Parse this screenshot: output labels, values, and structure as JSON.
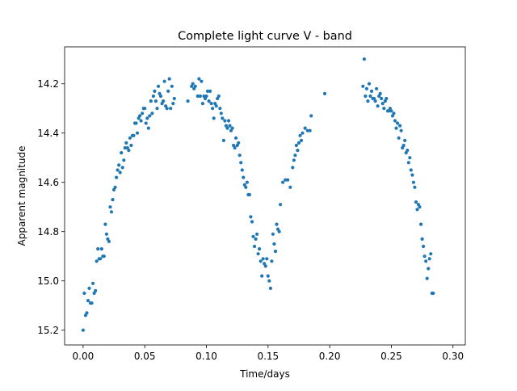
{
  "chart_data": {
    "type": "scatter",
    "title": "Complete light curve V - band",
    "xlabel": "Time/days",
    "ylabel": "Apparent magnitude",
    "xlim": [
      -0.015,
      0.31
    ],
    "ylim": [
      15.26,
      14.05
    ],
    "y_inverted": true,
    "grid": false,
    "x_ticks": [
      {
        "value": 0.0,
        "label": "0.00"
      },
      {
        "value": 0.05,
        "label": "0.05"
      },
      {
        "value": 0.1,
        "label": "0.10"
      },
      {
        "value": 0.15,
        "label": "0.15"
      },
      {
        "value": 0.2,
        "label": "0.20"
      },
      {
        "value": 0.25,
        "label": "0.25"
      },
      {
        "value": 0.3,
        "label": "0.30"
      }
    ],
    "y_ticks": [
      {
        "value": 14.2,
        "label": "14.2"
      },
      {
        "value": 14.4,
        "label": "14.4"
      },
      {
        "value": 14.6,
        "label": "14.6"
      },
      {
        "value": 14.8,
        "label": "14.8"
      },
      {
        "value": 15.0,
        "label": "15.0"
      },
      {
        "value": 15.2,
        "label": "15.2"
      }
    ],
    "series": [
      {
        "color": "#1f77b4",
        "points": [
          [
            0.0,
            15.2
          ],
          [
            0.001,
            15.05
          ],
          [
            0.002,
            15.14
          ],
          [
            0.003,
            15.13
          ],
          [
            0.004,
            15.08
          ],
          [
            0.005,
            15.03
          ],
          [
            0.006,
            15.09
          ],
          [
            0.007,
            15.09
          ],
          [
            0.008,
            15.01
          ],
          [
            0.009,
            15.05
          ],
          [
            0.01,
            15.04
          ],
          [
            0.011,
            14.92
          ],
          [
            0.012,
            14.87
          ],
          [
            0.013,
            14.91
          ],
          [
            0.014,
            14.91
          ],
          [
            0.015,
            14.87
          ],
          [
            0.016,
            14.9
          ],
          [
            0.017,
            14.9
          ],
          [
            0.018,
            14.77
          ],
          [
            0.019,
            14.81
          ],
          [
            0.02,
            14.83
          ],
          [
            0.021,
            14.84
          ],
          [
            0.022,
            14.7
          ],
          [
            0.023,
            14.72
          ],
          [
            0.024,
            14.67
          ],
          [
            0.025,
            14.63
          ],
          [
            0.026,
            14.62
          ],
          [
            0.027,
            14.58
          ],
          [
            0.028,
            14.55
          ],
          [
            0.029,
            14.53
          ],
          [
            0.03,
            14.56
          ],
          [
            0.031,
            14.48
          ],
          [
            0.032,
            14.54
          ],
          [
            0.033,
            14.51
          ],
          [
            0.034,
            14.46
          ],
          [
            0.035,
            14.44
          ],
          [
            0.036,
            14.46
          ],
          [
            0.037,
            14.47
          ],
          [
            0.038,
            14.42
          ],
          [
            0.039,
            14.45
          ],
          [
            0.04,
            14.41
          ],
          [
            0.041,
            14.41
          ],
          [
            0.042,
            14.36
          ],
          [
            0.043,
            14.36
          ],
          [
            0.044,
            14.4
          ],
          [
            0.045,
            14.34
          ],
          [
            0.046,
            14.33
          ],
          [
            0.047,
            14.35
          ],
          [
            0.048,
            14.32
          ],
          [
            0.049,
            14.3
          ],
          [
            0.05,
            14.3
          ],
          [
            0.051,
            14.36
          ],
          [
            0.052,
            14.34
          ],
          [
            0.053,
            14.38
          ],
          [
            0.054,
            14.33
          ],
          [
            0.055,
            14.27
          ],
          [
            0.056,
            14.32
          ],
          [
            0.057,
            14.25
          ],
          [
            0.058,
            14.23
          ],
          [
            0.059,
            14.27
          ],
          [
            0.06,
            14.3
          ],
          [
            0.061,
            14.21
          ],
          [
            0.062,
            14.24
          ],
          [
            0.063,
            14.25
          ],
          [
            0.064,
            14.28
          ],
          [
            0.065,
            14.27
          ],
          [
            0.066,
            14.19
          ],
          [
            0.067,
            14.29
          ],
          [
            0.068,
            14.3
          ],
          [
            0.069,
            14.23
          ],
          [
            0.07,
            14.18
          ],
          [
            0.071,
            14.3
          ],
          [
            0.072,
            14.21
          ],
          [
            0.073,
            14.28
          ],
          [
            0.074,
            14.26
          ],
          [
            0.085,
            14.27
          ],
          [
            0.088,
            14.21
          ],
          [
            0.089,
            14.2
          ],
          [
            0.09,
            14.22
          ],
          [
            0.091,
            14.21
          ],
          [
            0.093,
            14.25
          ],
          [
            0.094,
            14.18
          ],
          [
            0.095,
            14.25
          ],
          [
            0.096,
            14.19
          ],
          [
            0.097,
            14.28
          ],
          [
            0.098,
            14.25
          ],
          [
            0.099,
            14.26
          ],
          [
            0.1,
            14.25
          ],
          [
            0.101,
            14.23
          ],
          [
            0.102,
            14.27
          ],
          [
            0.103,
            14.23
          ],
          [
            0.104,
            14.28
          ],
          [
            0.105,
            14.3
          ],
          [
            0.106,
            14.34
          ],
          [
            0.107,
            14.28
          ],
          [
            0.108,
            14.29
          ],
          [
            0.109,
            14.26
          ],
          [
            0.11,
            14.25
          ],
          [
            0.111,
            14.3
          ],
          [
            0.112,
            14.32
          ],
          [
            0.113,
            14.34
          ],
          [
            0.114,
            14.43
          ],
          [
            0.115,
            14.35
          ],
          [
            0.116,
            14.37
          ],
          [
            0.117,
            14.38
          ],
          [
            0.118,
            14.35
          ],
          [
            0.119,
            14.37
          ],
          [
            0.12,
            14.39
          ],
          [
            0.121,
            14.38
          ],
          [
            0.122,
            14.45
          ],
          [
            0.123,
            14.46
          ],
          [
            0.124,
            14.42
          ],
          [
            0.125,
            14.45
          ],
          [
            0.126,
            14.44
          ],
          [
            0.127,
            14.49
          ],
          [
            0.128,
            14.52
          ],
          [
            0.129,
            14.55
          ],
          [
            0.13,
            14.58
          ],
          [
            0.131,
            14.61
          ],
          [
            0.132,
            14.62
          ],
          [
            0.133,
            14.6
          ],
          [
            0.134,
            14.65
          ],
          [
            0.135,
            14.65
          ],
          [
            0.136,
            14.74
          ],
          [
            0.137,
            14.76
          ],
          [
            0.138,
            14.82
          ],
          [
            0.139,
            14.86
          ],
          [
            0.14,
            14.83
          ],
          [
            0.141,
            14.81
          ],
          [
            0.142,
            14.89
          ],
          [
            0.143,
            14.87
          ],
          [
            0.144,
            14.92
          ],
          [
            0.145,
            14.98
          ],
          [
            0.146,
            14.91
          ],
          [
            0.147,
            14.93
          ],
          [
            0.148,
            14.94
          ],
          [
            0.149,
            14.91
          ],
          [
            0.15,
            14.98
          ],
          [
            0.151,
            15.0
          ],
          [
            0.152,
            15.03
          ],
          [
            0.153,
            14.92
          ],
          [
            0.154,
            14.81
          ],
          [
            0.155,
            14.85
          ],
          [
            0.156,
            14.88
          ],
          [
            0.157,
            14.77
          ],
          [
            0.158,
            14.79
          ],
          [
            0.159,
            14.8
          ],
          [
            0.16,
            14.69
          ],
          [
            0.162,
            14.6
          ],
          [
            0.164,
            14.59
          ],
          [
            0.166,
            14.59
          ],
          [
            0.168,
            14.62
          ],
          [
            0.17,
            14.54
          ],
          [
            0.171,
            14.51
          ],
          [
            0.172,
            14.49
          ],
          [
            0.173,
            14.45
          ],
          [
            0.174,
            14.47
          ],
          [
            0.175,
            14.44
          ],
          [
            0.176,
            14.41
          ],
          [
            0.177,
            14.43
          ],
          [
            0.178,
            14.4
          ],
          [
            0.18,
            14.38
          ],
          [
            0.182,
            14.39
          ],
          [
            0.184,
            14.39
          ],
          [
            0.185,
            14.33
          ],
          [
            0.196,
            14.24
          ],
          [
            0.227,
            14.21
          ],
          [
            0.228,
            14.1
          ],
          [
            0.229,
            14.25
          ],
          [
            0.23,
            14.22
          ],
          [
            0.231,
            14.27
          ],
          [
            0.232,
            14.2
          ],
          [
            0.233,
            14.25
          ],
          [
            0.234,
            14.23
          ],
          [
            0.235,
            14.26
          ],
          [
            0.236,
            14.26
          ],
          [
            0.237,
            14.27
          ],
          [
            0.238,
            14.22
          ],
          [
            0.239,
            14.29
          ],
          [
            0.24,
            14.25
          ],
          [
            0.241,
            14.24
          ],
          [
            0.242,
            14.26
          ],
          [
            0.243,
            14.28
          ],
          [
            0.244,
            14.3
          ],
          [
            0.245,
            14.27
          ],
          [
            0.246,
            14.26
          ],
          [
            0.247,
            14.31
          ],
          [
            0.248,
            14.31
          ],
          [
            0.249,
            14.3
          ],
          [
            0.25,
            14.31
          ],
          [
            0.251,
            14.33
          ],
          [
            0.252,
            14.32
          ],
          [
            0.253,
            14.35
          ],
          [
            0.254,
            14.38
          ],
          [
            0.255,
            14.36
          ],
          [
            0.256,
            14.42
          ],
          [
            0.257,
            14.37
          ],
          [
            0.258,
            14.39
          ],
          [
            0.259,
            14.46
          ],
          [
            0.26,
            14.45
          ],
          [
            0.261,
            14.43
          ],
          [
            0.262,
            14.48
          ],
          [
            0.263,
            14.47
          ],
          [
            0.264,
            14.52
          ],
          [
            0.265,
            14.5
          ],
          [
            0.266,
            14.55
          ],
          [
            0.267,
            14.57
          ],
          [
            0.268,
            14.6
          ],
          [
            0.269,
            14.62
          ],
          [
            0.27,
            14.68
          ],
          [
            0.271,
            14.71
          ],
          [
            0.272,
            14.69
          ],
          [
            0.273,
            14.7
          ],
          [
            0.274,
            14.77
          ],
          [
            0.275,
            14.83
          ],
          [
            0.276,
            14.86
          ],
          [
            0.277,
            14.9
          ],
          [
            0.278,
            14.92
          ],
          [
            0.279,
            14.99
          ],
          [
            0.28,
            14.95
          ],
          [
            0.281,
            14.91
          ],
          [
            0.282,
            14.89
          ],
          [
            0.283,
            15.05
          ],
          [
            0.284,
            15.05
          ]
        ]
      }
    ]
  }
}
